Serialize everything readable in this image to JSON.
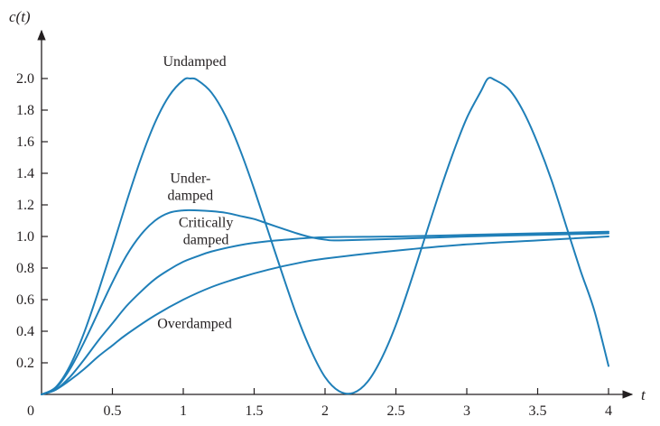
{
  "chart_data": {
    "type": "line",
    "title": "",
    "xlabel": "t",
    "ylabel": "c(t)",
    "xlim": [
      0,
      4
    ],
    "ylim": [
      0,
      2.0
    ],
    "origin_label": "0",
    "x_ticks": [
      {
        "value": 0.5,
        "label": "0.5"
      },
      {
        "value": 1,
        "label": "1"
      },
      {
        "value": 1.5,
        "label": "1.5"
      },
      {
        "value": 2,
        "label": "2"
      },
      {
        "value": 2.5,
        "label": "2.5"
      },
      {
        "value": 3,
        "label": "3"
      },
      {
        "value": 3.5,
        "label": "3.5"
      },
      {
        "value": 4,
        "label": "4"
      }
    ],
    "y_ticks": [
      {
        "value": 0.2,
        "label": "0.2"
      },
      {
        "value": 0.4,
        "label": "0.4"
      },
      {
        "value": 0.6,
        "label": "0.6"
      },
      {
        "value": 0.8,
        "label": "0.8"
      },
      {
        "value": 1.0,
        "label": "1.0"
      },
      {
        "value": 1.2,
        "label": "1.2"
      },
      {
        "value": 1.4,
        "label": "1.4"
      },
      {
        "value": 1.6,
        "label": "1.6"
      },
      {
        "value": 1.8,
        "label": "1.8"
      },
      {
        "value": 2.0,
        "label": "2.0"
      }
    ],
    "grid": false,
    "line_color": "#1f7fb8",
    "series": [
      {
        "name": "Undamped",
        "label_lines": [
          "Undamped"
        ],
        "x": [
          0,
          0.1,
          0.2,
          0.3,
          0.4,
          0.5,
          0.6,
          0.7,
          0.8,
          0.9,
          1.0,
          1.05,
          1.1,
          1.2,
          1.3,
          1.4,
          1.5,
          1.6,
          1.7,
          1.8,
          1.9,
          2.0,
          2.1,
          2.2,
          2.3,
          2.4,
          2.5,
          2.6,
          2.7,
          2.8,
          2.9,
          3.0,
          3.1,
          3.15,
          3.2,
          3.3,
          3.4,
          3.5,
          3.6,
          3.7,
          3.8,
          3.9,
          4.0
        ],
        "y": [
          0,
          0.045,
          0.18,
          0.39,
          0.65,
          0.93,
          1.22,
          1.49,
          1.72,
          1.89,
          1.99,
          2.0,
          1.99,
          1.91,
          1.76,
          1.55,
          1.3,
          1.03,
          0.76,
          0.5,
          0.28,
          0.11,
          0.02,
          0.01,
          0.08,
          0.23,
          0.44,
          0.7,
          0.98,
          1.26,
          1.52,
          1.75,
          1.92,
          2.0,
          1.99,
          1.93,
          1.79,
          1.59,
          1.35,
          1.07,
          0.79,
          0.53,
          0.18
        ]
      },
      {
        "name": "Under-damped",
        "label_lines": [
          "Under-",
          "damped"
        ],
        "x": [
          0,
          0.1,
          0.2,
          0.3,
          0.4,
          0.5,
          0.6,
          0.7,
          0.8,
          0.9,
          1.0,
          1.1,
          1.2,
          1.3,
          1.4,
          1.5,
          1.6,
          1.7,
          1.8,
          1.9,
          2.0,
          2.1,
          2.5,
          3.0,
          3.5,
          4.0
        ],
        "y": [
          0,
          0.04,
          0.16,
          0.33,
          0.52,
          0.71,
          0.88,
          1.01,
          1.1,
          1.15,
          1.165,
          1.165,
          1.16,
          1.15,
          1.13,
          1.11,
          1.08,
          1.05,
          1.02,
          0.995,
          0.98,
          0.975,
          0.985,
          1.0,
          1.01,
          1.02
        ]
      },
      {
        "name": "Critically damped",
        "label_lines": [
          "Critically",
          "damped"
        ],
        "x": [
          0,
          0.1,
          0.2,
          0.3,
          0.4,
          0.5,
          0.6,
          0.7,
          0.8,
          0.9,
          1.0,
          1.1,
          1.2,
          1.4,
          1.6,
          1.8,
          2.0,
          2.5,
          3.0,
          3.5,
          4.0
        ],
        "y": [
          0,
          0.03,
          0.11,
          0.22,
          0.34,
          0.45,
          0.56,
          0.65,
          0.73,
          0.79,
          0.84,
          0.875,
          0.905,
          0.945,
          0.97,
          0.985,
          0.995,
          1.0,
          1.01,
          1.02,
          1.03
        ]
      },
      {
        "name": "Overdamped",
        "label_lines": [
          "Overdamped"
        ],
        "x": [
          0,
          0.1,
          0.2,
          0.3,
          0.4,
          0.5,
          0.6,
          0.8,
          1.0,
          1.2,
          1.4,
          1.6,
          1.8,
          2.0,
          2.5,
          3.0,
          3.5,
          4.0
        ],
        "y": [
          0,
          0.03,
          0.09,
          0.16,
          0.24,
          0.31,
          0.38,
          0.5,
          0.6,
          0.68,
          0.74,
          0.79,
          0.83,
          0.86,
          0.91,
          0.95,
          0.975,
          1.0
        ]
      }
    ]
  }
}
